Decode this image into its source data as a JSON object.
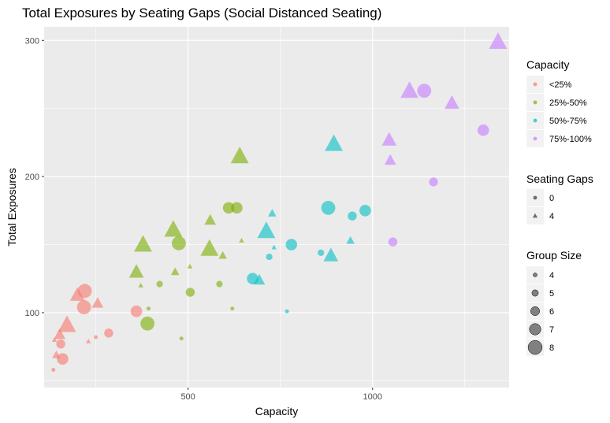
{
  "chart_data": {
    "type": "scatter",
    "title": "Total Exposures by Seating Gaps (Social Distanced Seating)",
    "xlabel": "Capacity",
    "ylabel": "Total Exposures",
    "xlim": [
      110,
      1370
    ],
    "ylim": [
      45,
      310
    ],
    "xticks": [
      500,
      1000
    ],
    "yticks": [
      100,
      200,
      300
    ],
    "grid": true,
    "legend_position": "right",
    "legends": {
      "capacity": {
        "title": "Capacity",
        "entries": [
          {
            "label": "<25%",
            "color": "#F8766D"
          },
          {
            "label": "25%-50%",
            "color": "#7CAE00"
          },
          {
            "label": "50%-75%",
            "color": "#00BFC4"
          },
          {
            "label": "75%-100%",
            "color": "#C77CFF"
          }
        ]
      },
      "seating_gaps": {
        "title": "Seating Gaps",
        "entries": [
          {
            "label": "0",
            "shape": "circle"
          },
          {
            "label": "4",
            "shape": "triangle"
          }
        ]
      },
      "group_size": {
        "title": "Group Size",
        "entries": [
          {
            "label": "4",
            "size": 4
          },
          {
            "label": "5",
            "size": 5
          },
          {
            "label": "6",
            "size": 6
          },
          {
            "label": "7",
            "size": 7
          },
          {
            "label": "8",
            "size": 8
          }
        ]
      }
    },
    "series": [
      {
        "name": "<25%",
        "color": "#F8766D",
        "points": [
          {
            "x": 135,
            "y": 58,
            "gap": 0,
            "group": 4
          },
          {
            "x": 155,
            "y": 77,
            "gap": 0,
            "group": 6
          },
          {
            "x": 160,
            "y": 66,
            "gap": 0,
            "group": 7
          },
          {
            "x": 138,
            "y": 80,
            "gap": 4,
            "group": 4
          },
          {
            "x": 143,
            "y": 69,
            "gap": 4,
            "group": 5
          },
          {
            "x": 152,
            "y": 84,
            "gap": 4,
            "group": 6
          },
          {
            "x": 172,
            "y": 91,
            "gap": 4,
            "group": 8
          },
          {
            "x": 200,
            "y": 113,
            "gap": 4,
            "group": 7
          },
          {
            "x": 220,
            "y": 116,
            "gap": 0,
            "group": 8
          },
          {
            "x": 218,
            "y": 104,
            "gap": 0,
            "group": 8
          },
          {
            "x": 230,
            "y": 79,
            "gap": 4,
            "group": 4
          },
          {
            "x": 250,
            "y": 82,
            "gap": 0,
            "group": 4
          },
          {
            "x": 255,
            "y": 107,
            "gap": 4,
            "group": 6
          },
          {
            "x": 285,
            "y": 85,
            "gap": 0,
            "group": 6
          },
          {
            "x": 360,
            "y": 101,
            "gap": 0,
            "group": 7
          }
        ]
      },
      {
        "name": "25%-50%",
        "color": "#7CAE00",
        "points": [
          {
            "x": 360,
            "y": 130,
            "gap": 4,
            "group": 7
          },
          {
            "x": 372,
            "y": 120,
            "gap": 4,
            "group": 4
          },
          {
            "x": 378,
            "y": 150,
            "gap": 4,
            "group": 8
          },
          {
            "x": 390,
            "y": 92,
            "gap": 0,
            "group": 8
          },
          {
            "x": 393,
            "y": 103,
            "gap": 0,
            "group": 4
          },
          {
            "x": 423,
            "y": 121,
            "gap": 0,
            "group": 5
          },
          {
            "x": 460,
            "y": 161,
            "gap": 4,
            "group": 8
          },
          {
            "x": 465,
            "y": 130,
            "gap": 4,
            "group": 5
          },
          {
            "x": 475,
            "y": 151,
            "gap": 0,
            "group": 8
          },
          {
            "x": 482,
            "y": 81,
            "gap": 0,
            "group": 4
          },
          {
            "x": 505,
            "y": 134,
            "gap": 4,
            "group": 4
          },
          {
            "x": 506,
            "y": 115,
            "gap": 0,
            "group": 6
          },
          {
            "x": 558,
            "y": 147,
            "gap": 4,
            "group": 8
          },
          {
            "x": 560,
            "y": 168,
            "gap": 4,
            "group": 6
          },
          {
            "x": 585,
            "y": 121,
            "gap": 0,
            "group": 5
          },
          {
            "x": 594,
            "y": 142,
            "gap": 4,
            "group": 5
          },
          {
            "x": 610,
            "y": 177,
            "gap": 0,
            "group": 7
          },
          {
            "x": 620,
            "y": 103,
            "gap": 0,
            "group": 4
          },
          {
            "x": 632,
            "y": 177,
            "gap": 0,
            "group": 7
          },
          {
            "x": 640,
            "y": 215,
            "gap": 4,
            "group": 8
          },
          {
            "x": 645,
            "y": 153,
            "gap": 4,
            "group": 4
          }
        ]
      },
      {
        "name": "50%-75%",
        "color": "#00BFC4",
        "points": [
          {
            "x": 675,
            "y": 125,
            "gap": 0,
            "group": 7
          },
          {
            "x": 693,
            "y": 124,
            "gap": 4,
            "group": 6
          },
          {
            "x": 712,
            "y": 160,
            "gap": 4,
            "group": 8
          },
          {
            "x": 720,
            "y": 141,
            "gap": 0,
            "group": 5
          },
          {
            "x": 728,
            "y": 173,
            "gap": 4,
            "group": 5
          },
          {
            "x": 733,
            "y": 148,
            "gap": 4,
            "group": 4
          },
          {
            "x": 768,
            "y": 101,
            "gap": 0,
            "group": 4
          },
          {
            "x": 780,
            "y": 150,
            "gap": 0,
            "group": 7
          },
          {
            "x": 860,
            "y": 144,
            "gap": 0,
            "group": 5
          },
          {
            "x": 880,
            "y": 177,
            "gap": 0,
            "group": 8
          },
          {
            "x": 887,
            "y": 142,
            "gap": 4,
            "group": 7
          },
          {
            "x": 895,
            "y": 224,
            "gap": 4,
            "group": 8
          },
          {
            "x": 940,
            "y": 153,
            "gap": 4,
            "group": 5
          },
          {
            "x": 945,
            "y": 171,
            "gap": 0,
            "group": 6
          },
          {
            "x": 980,
            "y": 175,
            "gap": 0,
            "group": 7
          }
        ]
      },
      {
        "name": "75%-100%",
        "color": "#C77CFF",
        "points": [
          {
            "x": 1045,
            "y": 227,
            "gap": 4,
            "group": 7
          },
          {
            "x": 1048,
            "y": 212,
            "gap": 4,
            "group": 6
          },
          {
            "x": 1055,
            "y": 152,
            "gap": 0,
            "group": 6
          },
          {
            "x": 1100,
            "y": 263,
            "gap": 4,
            "group": 8
          },
          {
            "x": 1140,
            "y": 263,
            "gap": 0,
            "group": 8
          },
          {
            "x": 1165,
            "y": 196,
            "gap": 0,
            "group": 6
          },
          {
            "x": 1215,
            "y": 254,
            "gap": 4,
            "group": 7
          },
          {
            "x": 1300,
            "y": 234,
            "gap": 0,
            "group": 7
          },
          {
            "x": 1340,
            "y": 299,
            "gap": 4,
            "group": 8
          }
        ]
      }
    ]
  }
}
